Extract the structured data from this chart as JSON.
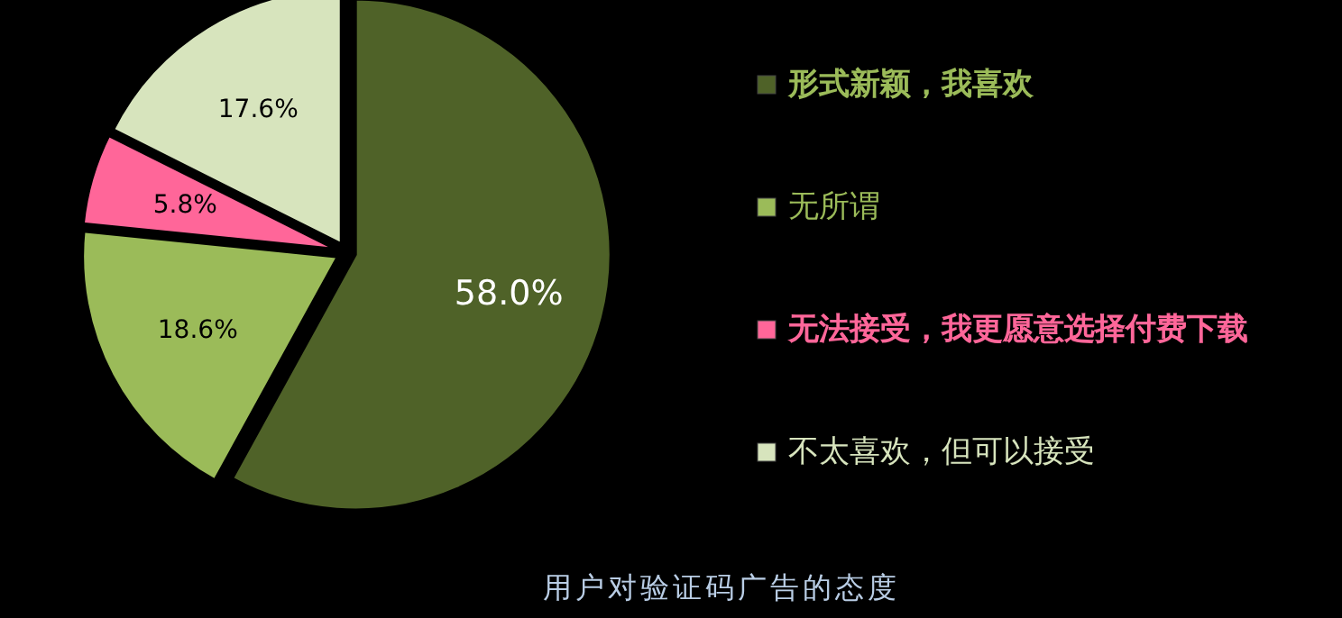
{
  "chart_data": {
    "type": "pie",
    "title": "用户对验证码广告的态度",
    "categories": [
      "形式新颖，我喜欢",
      "无所谓",
      "无法接受，我更愿意选择付费下载",
      "不太喜欢，但可以接受"
    ],
    "values": [
      58.0,
      18.6,
      5.8,
      17.6
    ],
    "colors": [
      "#4f6228",
      "#9bbb59",
      "#ff6699",
      "#d7e4bd"
    ],
    "value_labels": [
      "58.0%",
      "18.6%",
      "5.8%",
      "17.6%"
    ],
    "legend": "right"
  }
}
